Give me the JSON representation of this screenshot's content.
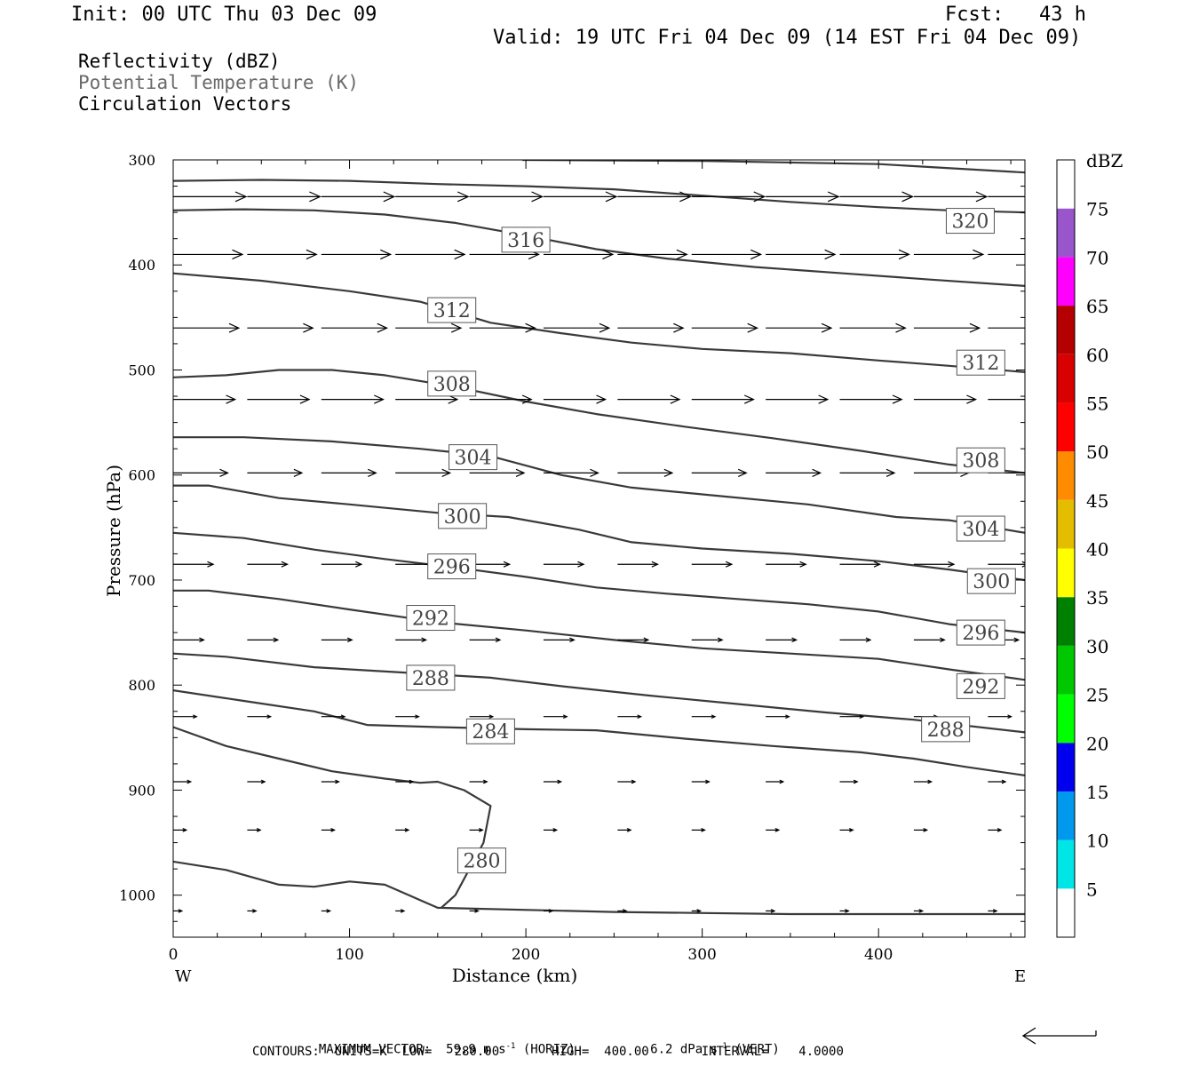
{
  "header": {
    "init": "Init: 00 UTC Thu 03 Dec 09",
    "fcst": "Fcst:   43 h",
    "valid": "Valid: 19 UTC Fri 04 Dec 09 (14 EST Fri 04 Dec 09)",
    "fields": [
      {
        "text": "Reflectivity (dBZ)",
        "color": "#000000"
      },
      {
        "text": "Potential Temperature (K)",
        "color": "#6a6a6a"
      },
      {
        "text": "Circulation Vectors",
        "color": "#000000"
      }
    ]
  },
  "footer": {
    "max_vector_prefix": "MAXIMUM VECTOR:  59.9 m s",
    "max_vector_horiz": " (HORIZ)",
    "max_vector_vert_prefix": "6.2 dPa s",
    "max_vector_vert": " (VERT)",
    "exponent": "-1",
    "contours": "CONTOURS:  UNITS=K  LOW=   280.00       HIGH=  400.00       INTERVAL=    4.0000"
  },
  "chart_data": {
    "type": "line",
    "xlabel": "Distance (km)",
    "ylabel": "Pressure (hPa)",
    "xlim": [
      0,
      483
    ],
    "ylim": [
      1040,
      300
    ],
    "x_ticks": [
      0,
      100,
      200,
      300,
      400
    ],
    "y_ticks": [
      300,
      400,
      500,
      600,
      700,
      800,
      900,
      1000
    ],
    "x_end_labels": {
      "left": "W",
      "right": "E"
    },
    "series_color": "#3a3a3a",
    "contours": [
      {
        "label": "",
        "points": [
          [
            198,
            300
          ],
          [
            300,
            301
          ],
          [
            400,
            304
          ],
          [
            483,
            312
          ]
        ]
      },
      {
        "label": "320",
        "label_at": [
          452,
          358
        ],
        "points": [
          [
            0,
            320
          ],
          [
            50,
            319
          ],
          [
            100,
            320
          ],
          [
            150,
            323
          ],
          [
            200,
            325
          ],
          [
            250,
            328
          ],
          [
            300,
            334
          ],
          [
            350,
            340
          ],
          [
            400,
            345
          ],
          [
            440,
            348
          ],
          [
            483,
            350
          ]
        ]
      },
      {
        "label": "316",
        "label_at": [
          200,
          376
        ],
        "points": [
          [
            0,
            348
          ],
          [
            40,
            347
          ],
          [
            80,
            348
          ],
          [
            120,
            352
          ],
          [
            160,
            360
          ],
          [
            200,
            372
          ],
          [
            240,
            385
          ],
          [
            280,
            394
          ],
          [
            330,
            402
          ],
          [
            380,
            408
          ],
          [
            430,
            414
          ],
          [
            483,
            420
          ]
        ]
      },
      {
        "label": "312",
        "label_at": [
          158,
          443
        ],
        "points": [
          [
            0,
            408
          ],
          [
            50,
            415
          ],
          [
            100,
            425
          ],
          [
            140,
            435
          ],
          [
            180,
            455
          ],
          [
            220,
            465
          ],
          [
            260,
            474
          ],
          [
            300,
            480
          ],
          [
            350,
            484
          ],
          [
            400,
            491
          ],
          [
            440,
            496
          ],
          [
            483,
            502
          ]
        ]
      },
      {
        "label": "312",
        "label_at": [
          458,
          493
        ],
        "points": []
      },
      {
        "label": "308",
        "label_at": [
          158,
          513
        ],
        "points": [
          [
            0,
            507
          ],
          [
            30,
            505
          ],
          [
            60,
            500
          ],
          [
            90,
            500
          ],
          [
            120,
            505
          ],
          [
            160,
            516
          ],
          [
            200,
            530
          ],
          [
            240,
            542
          ],
          [
            290,
            554
          ],
          [
            340,
            565
          ],
          [
            390,
            577
          ],
          [
            440,
            590
          ],
          [
            483,
            598
          ]
        ]
      },
      {
        "label": "308",
        "label_at": [
          458,
          586
        ],
        "points": []
      },
      {
        "label": "304",
        "label_at": [
          170,
          583
        ],
        "points": [
          [
            0,
            564
          ],
          [
            40,
            564
          ],
          [
            90,
            568
          ],
          [
            140,
            575
          ],
          [
            180,
            582
          ],
          [
            220,
            600
          ],
          [
            260,
            612
          ],
          [
            310,
            620
          ],
          [
            360,
            628
          ],
          [
            410,
            640
          ],
          [
            440,
            643
          ],
          [
            483,
            655
          ]
        ]
      },
      {
        "label": "304",
        "label_at": [
          458,
          651
        ],
        "points": []
      },
      {
        "label": "300",
        "label_at": [
          164,
          639
        ],
        "points": [
          [
            0,
            610
          ],
          [
            20,
            610
          ],
          [
            60,
            622
          ],
          [
            100,
            628
          ],
          [
            150,
            636
          ],
          [
            190,
            640
          ],
          [
            230,
            652
          ],
          [
            260,
            664
          ],
          [
            300,
            670
          ],
          [
            350,
            675
          ],
          [
            400,
            682
          ],
          [
            440,
            690
          ],
          [
            483,
            700
          ]
        ]
      },
      {
        "label": "300",
        "label_at": [
          464,
          701
        ],
        "points": []
      },
      {
        "label": "296",
        "label_at": [
          158,
          687
        ],
        "points": [
          [
            0,
            655
          ],
          [
            40,
            660
          ],
          [
            80,
            671
          ],
          [
            120,
            680
          ],
          [
            160,
            688
          ],
          [
            200,
            697
          ],
          [
            240,
            707
          ],
          [
            280,
            713
          ],
          [
            320,
            718
          ],
          [
            360,
            723
          ],
          [
            400,
            730
          ],
          [
            440,
            742
          ],
          [
            483,
            750
          ]
        ]
      },
      {
        "label": "296",
        "label_at": [
          458,
          750
        ],
        "points": []
      },
      {
        "label": "292",
        "label_at": [
          146,
          736
        ],
        "points": [
          [
            0,
            710
          ],
          [
            20,
            710
          ],
          [
            60,
            718
          ],
          [
            100,
            728
          ],
          [
            150,
            740
          ],
          [
            200,
            748
          ],
          [
            250,
            757
          ],
          [
            300,
            765
          ],
          [
            350,
            770
          ],
          [
            400,
            775
          ],
          [
            440,
            785
          ],
          [
            483,
            795
          ]
        ]
      },
      {
        "label": "292",
        "label_at": [
          458,
          801
        ],
        "points": []
      },
      {
        "label": "288",
        "label_at": [
          146,
          793
        ],
        "points": [
          [
            0,
            770
          ],
          [
            30,
            773
          ],
          [
            80,
            783
          ],
          [
            130,
            788
          ],
          [
            180,
            793
          ],
          [
            220,
            801
          ],
          [
            270,
            810
          ],
          [
            320,
            818
          ],
          [
            370,
            826
          ],
          [
            420,
            833
          ],
          [
            483,
            845
          ]
        ]
      },
      {
        "label": "288",
        "label_at": [
          438,
          842
        ],
        "points": []
      },
      {
        "label": "284",
        "label_at": [
          180,
          844
        ],
        "points": [
          [
            0,
            805
          ],
          [
            40,
            815
          ],
          [
            80,
            825
          ],
          [
            110,
            838
          ],
          [
            150,
            840
          ],
          [
            200,
            842
          ],
          [
            240,
            843
          ],
          [
            290,
            851
          ],
          [
            340,
            858
          ],
          [
            390,
            864
          ],
          [
            420,
            870
          ],
          [
            450,
            878
          ],
          [
            483,
            886
          ]
        ]
      },
      {
        "label": "280",
        "label_at": [
          175,
          967
        ],
        "points": [
          [
            0,
            840
          ],
          [
            30,
            858
          ],
          [
            60,
            870
          ],
          [
            90,
            882
          ],
          [
            120,
            889
          ],
          [
            140,
            893
          ],
          [
            150,
            892
          ],
          [
            165,
            900
          ],
          [
            180,
            915
          ],
          [
            176,
            950
          ],
          [
            160,
            1000
          ],
          [
            152,
            1012
          ]
        ]
      },
      {
        "label": "",
        "points": [
          [
            0,
            968
          ],
          [
            30,
            976
          ],
          [
            60,
            990
          ],
          [
            80,
            992
          ],
          [
            100,
            987
          ],
          [
            120,
            990
          ],
          [
            150,
            1012
          ],
          [
            250,
            1016
          ],
          [
            350,
            1018
          ],
          [
            483,
            1018
          ]
        ]
      }
    ],
    "vectors": {
      "rows": [
        {
          "p": 335,
          "u": 1.0
        },
        {
          "p": 390,
          "u": 0.95
        },
        {
          "p": 460,
          "u": 0.9
        },
        {
          "p": 528,
          "u": 0.85
        },
        {
          "p": 598,
          "u": 0.75
        },
        {
          "p": 685,
          "u": 0.55
        },
        {
          "p": 757,
          "u": 0.42
        },
        {
          "p": 830,
          "u": 0.32
        },
        {
          "p": 892,
          "u": 0.24
        },
        {
          "p": 938,
          "u": 0.18
        },
        {
          "p": 1015,
          "u": 0.12
        }
      ],
      "x_stations": [
        0,
        42,
        84,
        126,
        168,
        210,
        252,
        294,
        336,
        378,
        420,
        462
      ],
      "max_horiz_ms": 59.9,
      "max_vert_dpa": 6.2
    }
  },
  "colorbar": {
    "unit": "dBZ",
    "levels": [
      {
        "min": 0,
        "max": 5,
        "color": "#ffffff",
        "label": ""
      },
      {
        "min": 5,
        "max": 10,
        "color": "#00e5e5",
        "label": "5"
      },
      {
        "min": 10,
        "max": 15,
        "color": "#0099ee",
        "label": "10"
      },
      {
        "min": 15,
        "max": 20,
        "color": "#0000ee",
        "label": "15"
      },
      {
        "min": 20,
        "max": 25,
        "color": "#00ff00",
        "label": "20"
      },
      {
        "min": 25,
        "max": 30,
        "color": "#00c800",
        "label": "25"
      },
      {
        "min": 30,
        "max": 35,
        "color": "#008000",
        "label": "30"
      },
      {
        "min": 35,
        "max": 40,
        "color": "#ffff00",
        "label": "35"
      },
      {
        "min": 40,
        "max": 45,
        "color": "#e5bd00",
        "label": "40"
      },
      {
        "min": 45,
        "max": 50,
        "color": "#ff8c00",
        "label": "45"
      },
      {
        "min": 50,
        "max": 55,
        "color": "#ff0000",
        "label": "50"
      },
      {
        "min": 55,
        "max": 60,
        "color": "#d80000",
        "label": "55"
      },
      {
        "min": 60,
        "max": 65,
        "color": "#b40000",
        "label": "60"
      },
      {
        "min": 65,
        "max": 70,
        "color": "#ff00ff",
        "label": "65"
      },
      {
        "min": 70,
        "max": 75,
        "color": "#9955cc",
        "label": "70"
      },
      {
        "min": 75,
        "max": 80,
        "color": "#ffffff",
        "label": "75"
      }
    ]
  }
}
